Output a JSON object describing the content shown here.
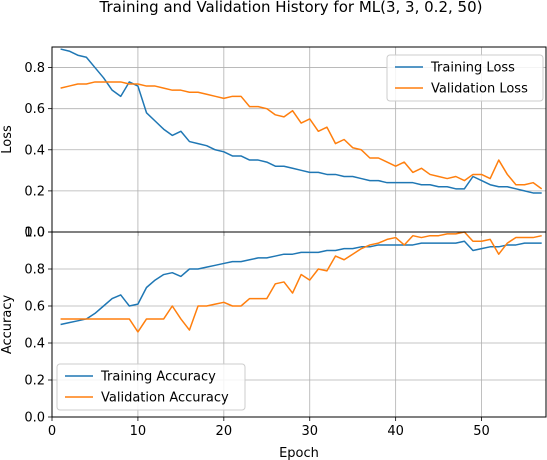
{
  "chart_data": {
    "title": "Training and Validation History for ML(3, 3, 0.2, 50)",
    "colors": {
      "training": "#1f77b4",
      "validation": "#ff7f0e"
    },
    "subplots": [
      {
        "type": "line",
        "ylabel": "Loss",
        "xlabel": "",
        "xlim": [
          0,
          57.5
        ],
        "ylim": [
          0.0,
          0.9
        ],
        "xticks": [
          0,
          10,
          20,
          30,
          40,
          50
        ],
        "yticks": [
          0.0,
          0.2,
          0.4,
          0.6,
          0.8
        ],
        "ytick_labels": [
          "0.0",
          "0.2",
          "0.4",
          "0.6",
          "0.8"
        ],
        "grid": true,
        "legend_position": "upper-right",
        "x": [
          1,
          2,
          3,
          4,
          5,
          6,
          7,
          8,
          9,
          10,
          11,
          12,
          13,
          14,
          15,
          16,
          17,
          18,
          19,
          20,
          21,
          22,
          23,
          24,
          25,
          26,
          27,
          28,
          29,
          30,
          31,
          32,
          33,
          34,
          35,
          36,
          37,
          38,
          39,
          40,
          41,
          42,
          43,
          44,
          45,
          46,
          47,
          48,
          49,
          50,
          51,
          52,
          53,
          54,
          55,
          56,
          57
        ],
        "series": [
          {
            "name": "Training Loss",
            "color": "#1f77b4",
            "values": [
              0.89,
              0.88,
              0.86,
              0.85,
              0.8,
              0.75,
              0.69,
              0.66,
              0.73,
              0.71,
              0.58,
              0.54,
              0.5,
              0.47,
              0.49,
              0.44,
              0.43,
              0.42,
              0.4,
              0.39,
              0.37,
              0.37,
              0.35,
              0.35,
              0.34,
              0.32,
              0.32,
              0.31,
              0.3,
              0.29,
              0.29,
              0.28,
              0.28,
              0.27,
              0.27,
              0.26,
              0.25,
              0.25,
              0.24,
              0.24,
              0.24,
              0.24,
              0.23,
              0.23,
              0.22,
              0.22,
              0.21,
              0.21,
              0.27,
              0.25,
              0.23,
              0.22,
              0.22,
              0.21,
              0.2,
              0.19,
              0.19
            ]
          },
          {
            "name": "Validation Loss",
            "color": "#ff7f0e",
            "values": [
              0.7,
              0.71,
              0.72,
              0.72,
              0.73,
              0.73,
              0.73,
              0.73,
              0.72,
              0.72,
              0.71,
              0.71,
              0.7,
              0.69,
              0.69,
              0.68,
              0.68,
              0.67,
              0.66,
              0.65,
              0.66,
              0.66,
              0.61,
              0.61,
              0.6,
              0.57,
              0.56,
              0.59,
              0.53,
              0.55,
              0.49,
              0.51,
              0.43,
              0.45,
              0.41,
              0.4,
              0.36,
              0.36,
              0.34,
              0.32,
              0.34,
              0.29,
              0.31,
              0.28,
              0.27,
              0.26,
              0.27,
              0.25,
              0.28,
              0.28,
              0.26,
              0.35,
              0.28,
              0.23,
              0.23,
              0.24,
              0.21
            ]
          }
        ]
      },
      {
        "type": "line",
        "ylabel": "Accuracy",
        "xlabel": "Epoch",
        "xlim": [
          0,
          57.5
        ],
        "ylim": [
          0.0,
          1.0
        ],
        "xticks": [
          0,
          10,
          20,
          30,
          40,
          50
        ],
        "xtick_labels": [
          "0",
          "10",
          "20",
          "30",
          "40",
          "50"
        ],
        "yticks": [
          0.0,
          0.2,
          0.4,
          0.6,
          0.8,
          1.0
        ],
        "ytick_labels": [
          "0.0",
          "0.2",
          "0.4",
          "0.6",
          "0.8",
          "1.0"
        ],
        "grid": true,
        "legend_position": "lower-left",
        "x": [
          1,
          2,
          3,
          4,
          5,
          6,
          7,
          8,
          9,
          10,
          11,
          12,
          13,
          14,
          15,
          16,
          17,
          18,
          19,
          20,
          21,
          22,
          23,
          24,
          25,
          26,
          27,
          28,
          29,
          30,
          31,
          32,
          33,
          34,
          35,
          36,
          37,
          38,
          39,
          40,
          41,
          42,
          43,
          44,
          45,
          46,
          47,
          48,
          49,
          50,
          51,
          52,
          53,
          54,
          55,
          56,
          57
        ],
        "series": [
          {
            "name": "Training Accuracy",
            "color": "#1f77b4",
            "values": [
              0.5,
              0.51,
              0.52,
              0.53,
              0.56,
              0.6,
              0.64,
              0.66,
              0.6,
              0.61,
              0.7,
              0.74,
              0.77,
              0.78,
              0.76,
              0.8,
              0.8,
              0.81,
              0.82,
              0.83,
              0.84,
              0.84,
              0.85,
              0.86,
              0.86,
              0.87,
              0.88,
              0.88,
              0.89,
              0.89,
              0.89,
              0.9,
              0.9,
              0.91,
              0.91,
              0.92,
              0.92,
              0.93,
              0.93,
              0.93,
              0.93,
              0.93,
              0.94,
              0.94,
              0.94,
              0.94,
              0.94,
              0.95,
              0.9,
              0.91,
              0.92,
              0.92,
              0.93,
              0.93,
              0.94,
              0.94,
              0.94
            ]
          },
          {
            "name": "Validation Accuracy",
            "color": "#ff7f0e",
            "values": [
              0.53,
              0.53,
              0.53,
              0.53,
              0.53,
              0.53,
              0.53,
              0.53,
              0.53,
              0.46,
              0.53,
              0.53,
              0.53,
              0.6,
              0.53,
              0.47,
              0.6,
              0.6,
              0.61,
              0.62,
              0.6,
              0.6,
              0.64,
              0.64,
              0.64,
              0.72,
              0.73,
              0.67,
              0.77,
              0.74,
              0.8,
              0.79,
              0.87,
              0.85,
              0.88,
              0.91,
              0.93,
              0.94,
              0.96,
              0.97,
              0.93,
              0.98,
              0.97,
              0.98,
              0.98,
              0.99,
              0.99,
              1.0,
              0.95,
              0.95,
              0.96,
              0.88,
              0.94,
              0.97,
              0.97,
              0.97,
              0.98
            ]
          }
        ]
      }
    ]
  }
}
